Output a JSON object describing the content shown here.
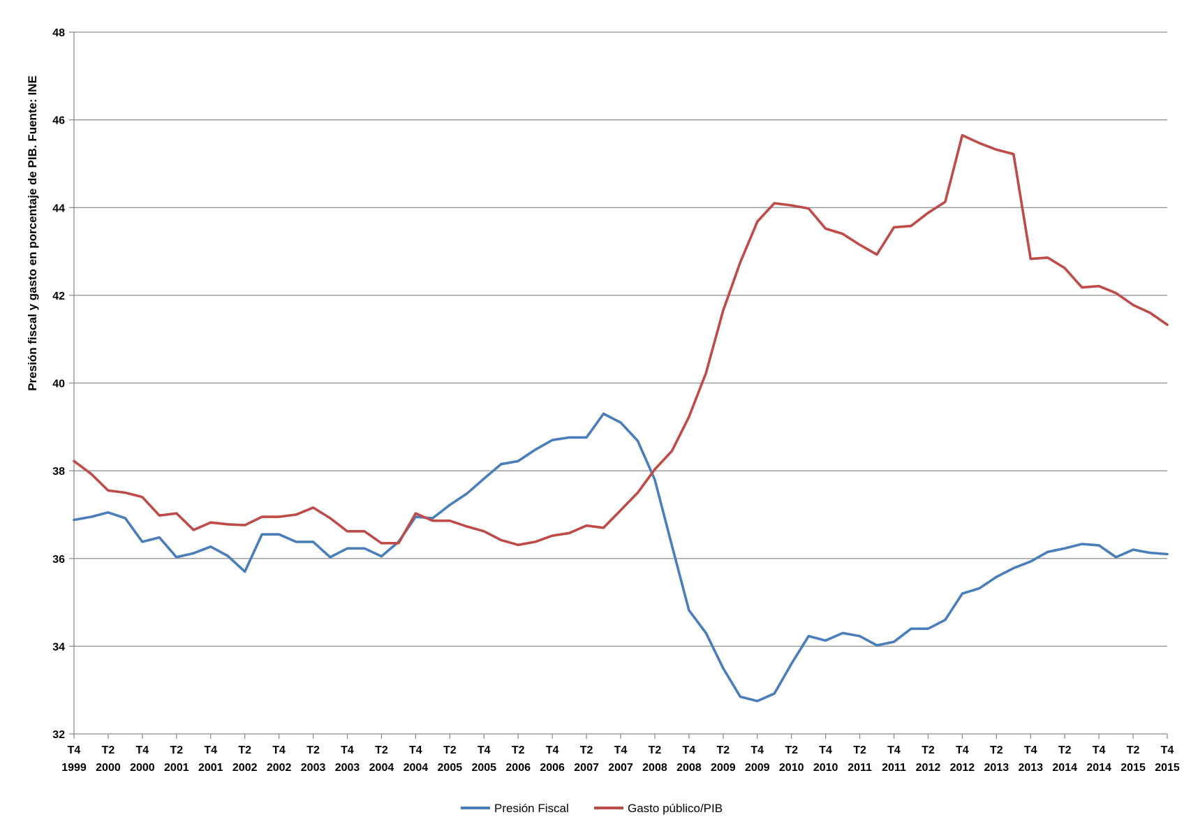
{
  "chart_data": {
    "type": "line",
    "title": "",
    "ylabel": "Presión fiscal y gasto en porcentaje de PIB. Fuente: INE",
    "xlabel": "",
    "ylim": [
      32,
      48
    ],
    "yticks": [
      32,
      34,
      36,
      38,
      40,
      42,
      44,
      46,
      48
    ],
    "grid": true,
    "legend_position": "bottom",
    "x_tick_labels": [
      {
        "q": "T4",
        "year": "1999"
      },
      {
        "q": "T2",
        "year": "2000"
      },
      {
        "q": "T4",
        "year": "2000"
      },
      {
        "q": "T2",
        "year": "2001"
      },
      {
        "q": "T4",
        "year": "2001"
      },
      {
        "q": "T2",
        "year": "2002"
      },
      {
        "q": "T4",
        "year": "2002"
      },
      {
        "q": "T2",
        "year": "2003"
      },
      {
        "q": "T4",
        "year": "2003"
      },
      {
        "q": "T2",
        "year": "2004"
      },
      {
        "q": "T4",
        "year": "2004"
      },
      {
        "q": "T2",
        "year": "2005"
      },
      {
        "q": "T4",
        "year": "2005"
      },
      {
        "q": "T2",
        "year": "2006"
      },
      {
        "q": "T4",
        "year": "2006"
      },
      {
        "q": "T2",
        "year": "2007"
      },
      {
        "q": "T4",
        "year": "2007"
      },
      {
        "q": "T2",
        "year": "2008"
      },
      {
        "q": "T4",
        "year": "2008"
      },
      {
        "q": "T2",
        "year": "2009"
      },
      {
        "q": "T4",
        "year": "2009"
      },
      {
        "q": "T2",
        "year": "2010"
      },
      {
        "q": "T4",
        "year": "2010"
      },
      {
        "q": "T2",
        "year": "2011"
      },
      {
        "q": "T4",
        "year": "2011"
      },
      {
        "q": "T2",
        "year": "2012"
      },
      {
        "q": "T4",
        "year": "2012"
      },
      {
        "q": "T2",
        "year": "2013"
      },
      {
        "q": "T4",
        "year": "2013"
      },
      {
        "q": "T2",
        "year": "2014"
      },
      {
        "q": "T4",
        "year": "2014"
      },
      {
        "q": "T2",
        "year": "2015"
      },
      {
        "q": "T4",
        "year": "2015"
      }
    ],
    "x": [
      "T4 1999",
      "T1 2000",
      "T2 2000",
      "T3 2000",
      "T4 2000",
      "T1 2001",
      "T2 2001",
      "T3 2001",
      "T4 2001",
      "T1 2002",
      "T2 2002",
      "T3 2002",
      "T4 2002",
      "T1 2003",
      "T2 2003",
      "T3 2003",
      "T4 2003",
      "T1 2004",
      "T2 2004",
      "T3 2004",
      "T4 2004",
      "T1 2005",
      "T2 2005",
      "T3 2005",
      "T4 2005",
      "T1 2006",
      "T2 2006",
      "T3 2006",
      "T4 2006",
      "T1 2007",
      "T2 2007",
      "T3 2007",
      "T4 2007",
      "T1 2008",
      "T2 2008",
      "T3 2008",
      "T4 2008",
      "T1 2009",
      "T2 2009",
      "T3 2009",
      "T4 2009",
      "T1 2010",
      "T2 2010",
      "T3 2010",
      "T4 2010",
      "T1 2011",
      "T2 2011",
      "T3 2011",
      "T4 2011",
      "T1 2012",
      "T2 2012",
      "T3 2012",
      "T4 2012",
      "T1 2013",
      "T2 2013",
      "T3 2013",
      "T4 2013",
      "T1 2014",
      "T2 2014",
      "T3 2014",
      "T4 2014",
      "T1 2015",
      "T2 2015",
      "T3 2015",
      "T4 2015"
    ],
    "series": [
      {
        "name": "Presión Fiscal",
        "color": "#4A7EBB",
        "values": [
          36.88,
          36.95,
          37.05,
          36.92,
          36.38,
          36.48,
          36.03,
          36.12,
          36.27,
          36.06,
          35.7,
          36.55,
          36.55,
          36.38,
          36.38,
          36.03,
          36.23,
          36.23,
          36.05,
          36.38,
          36.95,
          36.92,
          37.22,
          37.48,
          37.82,
          38.15,
          38.22,
          38.48,
          38.7,
          38.76,
          38.76,
          39.3,
          39.1,
          38.68,
          37.8,
          36.3,
          34.82,
          34.3,
          33.5,
          32.85,
          32.75,
          32.92,
          33.6,
          34.23,
          34.13,
          34.3,
          34.23,
          34.02,
          34.1,
          34.4,
          34.4,
          34.6,
          35.2,
          35.32,
          35.58,
          35.78,
          35.93,
          36.15,
          36.23,
          36.33,
          36.3,
          36.03,
          36.2,
          36.13,
          36.1
        ]
      },
      {
        "name": "Gasto público/PIB",
        "color": "#BE4B48",
        "values": [
          38.22,
          37.93,
          37.55,
          37.5,
          37.4,
          36.98,
          37.03,
          36.65,
          36.82,
          36.78,
          36.76,
          36.95,
          36.95,
          37.0,
          37.16,
          36.92,
          36.62,
          36.62,
          36.35,
          36.35,
          37.03,
          36.86,
          36.86,
          36.73,
          36.62,
          36.42,
          36.31,
          36.38,
          36.52,
          36.58,
          36.75,
          36.7,
          37.1,
          37.5,
          38.03,
          38.45,
          39.23,
          40.23,
          41.65,
          42.75,
          43.68,
          44.1,
          44.05,
          43.98,
          43.52,
          43.4,
          43.15,
          42.93,
          43.55,
          43.58,
          43.88,
          44.13,
          45.65,
          45.47,
          45.32,
          45.22,
          42.83,
          42.86,
          42.62,
          42.18,
          42.21,
          42.05,
          41.78,
          41.6,
          41.33
        ]
      }
    ]
  }
}
